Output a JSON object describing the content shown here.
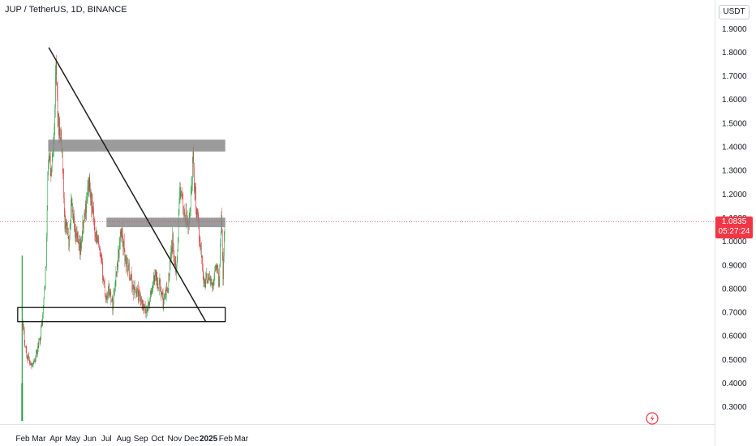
{
  "header": {
    "symbol_title": "JUP / TetherUS, 1D, BINANCE",
    "unit": "USDT"
  },
  "price_tag": {
    "price": "1.0835",
    "countdown": "05:27:24"
  },
  "colors": {
    "up": "#26a042",
    "down": "#e0323c",
    "zone": "#8a8a8a",
    "trendline": "#1c1c1c",
    "price_line": "#f23645"
  },
  "chart_data": {
    "type": "candlestick",
    "title": "JUP / TetherUS, 1D, BINANCE",
    "y_ticks": [
      "0.3000",
      "0.4000",
      "0.5000",
      "0.6000",
      "0.7000",
      "0.8000",
      "0.9000",
      "1.0000",
      "1.1000",
      "1.2000",
      "1.3000",
      "1.4000",
      "1.5000",
      "1.6000",
      "1.7000",
      "1.8000",
      "1.9000"
    ],
    "x_ticks": [
      "Feb",
      "Mar",
      "Apr",
      "May",
      "Jun",
      "Jul",
      "Aug",
      "Sep",
      "Oct",
      "Nov",
      "Dec",
      "2025",
      "Feb",
      "Mar"
    ],
    "ylim": [
      0.24,
      1.95
    ],
    "last_price": 1.0835,
    "approx_path": [
      [
        "2024-01-31",
        0.66
      ],
      [
        "2024-02-08",
        0.52
      ],
      [
        "2024-02-16",
        0.48
      ],
      [
        "2024-02-24",
        0.5
      ],
      [
        "2024-03-02",
        0.58
      ],
      [
        "2024-03-08",
        0.68
      ],
      [
        "2024-03-14",
        0.9
      ],
      [
        "2024-03-18",
        1.35
      ],
      [
        "2024-03-24",
        1.3
      ],
      [
        "2024-03-29",
        1.52
      ],
      [
        "2024-04-01",
        1.72
      ],
      [
        "2024-04-06",
        1.45
      ],
      [
        "2024-04-12",
        1.38
      ],
      [
        "2024-04-17",
        1.08
      ],
      [
        "2024-04-24",
        1.0
      ],
      [
        "2024-04-29",
        1.17
      ],
      [
        "2024-05-06",
        1.02
      ],
      [
        "2024-05-14",
        0.95
      ],
      [
        "2024-05-22",
        1.1
      ],
      [
        "2024-05-30",
        1.25
      ],
      [
        "2024-06-06",
        1.12
      ],
      [
        "2024-06-14",
        1.0
      ],
      [
        "2024-06-22",
        0.9
      ],
      [
        "2024-06-30",
        0.76
      ],
      [
        "2024-07-06",
        0.8
      ],
      [
        "2024-07-12",
        0.73
      ],
      [
        "2024-07-20",
        0.9
      ],
      [
        "2024-07-28",
        1.05
      ],
      [
        "2024-08-04",
        0.92
      ],
      [
        "2024-08-10",
        0.88
      ],
      [
        "2024-08-18",
        0.8
      ],
      [
        "2024-08-26",
        0.78
      ],
      [
        "2024-09-04",
        0.72
      ],
      [
        "2024-09-10",
        0.7
      ],
      [
        "2024-09-18",
        0.76
      ],
      [
        "2024-09-26",
        0.86
      ],
      [
        "2024-10-04",
        0.82
      ],
      [
        "2024-10-12",
        0.74
      ],
      [
        "2024-10-20",
        0.82
      ],
      [
        "2024-10-28",
        1.0
      ],
      [
        "2024-11-04",
        0.87
      ],
      [
        "2024-11-10",
        1.22
      ],
      [
        "2024-11-18",
        1.12
      ],
      [
        "2024-11-26",
        1.05
      ],
      [
        "2024-12-04",
        1.35
      ],
      [
        "2024-12-10",
        1.12
      ],
      [
        "2024-12-18",
        0.97
      ],
      [
        "2024-12-24",
        0.82
      ],
      [
        "2025-01-01",
        0.86
      ],
      [
        "2025-01-08",
        0.8
      ],
      [
        "2025-01-14",
        0.92
      ],
      [
        "2025-01-20",
        0.82
      ],
      [
        "2025-01-24",
        1.15
      ],
      [
        "2025-01-27",
        0.85
      ],
      [
        "2025-01-30",
        1.0835
      ]
    ],
    "annotations": {
      "resistance_zone": [
        1.38,
        1.43
      ],
      "mid_zone": [
        1.06,
        1.1
      ],
      "support_zone": [
        0.66,
        0.72
      ],
      "trendline": [
        [
          "2024-03-19",
          1.82
        ],
        [
          "2024-12-27",
          0.66
        ]
      ]
    }
  }
}
